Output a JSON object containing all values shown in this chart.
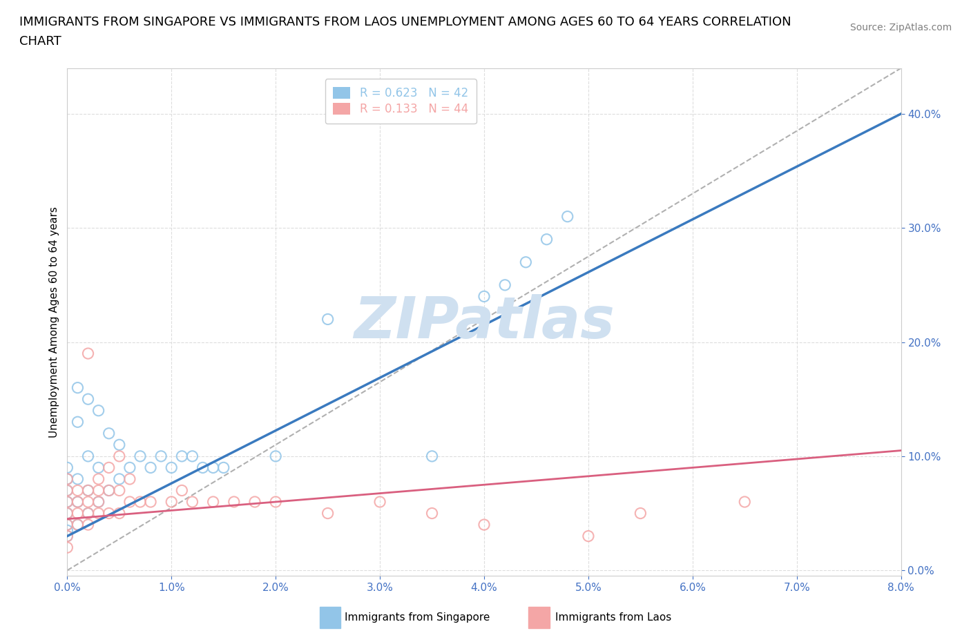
{
  "title_line1": "IMMIGRANTS FROM SINGAPORE VS IMMIGRANTS FROM LAOS UNEMPLOYMENT AMONG AGES 60 TO 64 YEARS CORRELATION",
  "title_line2": "CHART",
  "source": "Source: ZipAtlas.com",
  "ylabel": "Unemployment Among Ages 60 to 64 years",
  "xlim": [
    0.0,
    0.08
  ],
  "ylim": [
    -0.005,
    0.44
  ],
  "xticks": [
    0.0,
    0.01,
    0.02,
    0.03,
    0.04,
    0.05,
    0.06,
    0.07,
    0.08
  ],
  "yticks": [
    0.0,
    0.1,
    0.2,
    0.3,
    0.4
  ],
  "xtick_labels": [
    "0.0%",
    "1.0%",
    "2.0%",
    "3.0%",
    "4.0%",
    "5.0%",
    "6.0%",
    "7.0%",
    "8.0%"
  ],
  "ytick_labels": [
    "0.0%",
    "10.0%",
    "20.0%",
    "30.0%",
    "40.0%"
  ],
  "legend_entries": [
    {
      "label": "Immigrants from Singapore",
      "R": "0.623",
      "N": "42",
      "color": "#92c5e8"
    },
    {
      "label": "Immigrants from Laos",
      "R": "0.133",
      "N": "44",
      "color": "#f4a6a6"
    }
  ],
  "watermark": "ZIPatlas",
  "singapore_scatter_x": [
    0.0,
    0.0,
    0.0,
    0.0,
    0.0,
    0.0,
    0.0,
    0.0,
    0.001,
    0.001,
    0.001,
    0.001,
    0.001,
    0.002,
    0.002,
    0.002,
    0.002,
    0.003,
    0.003,
    0.003,
    0.004,
    0.004,
    0.005,
    0.005,
    0.006,
    0.007,
    0.008,
    0.009,
    0.01,
    0.011,
    0.012,
    0.013,
    0.014,
    0.015,
    0.02,
    0.025,
    0.035,
    0.04,
    0.042,
    0.044,
    0.046,
    0.048
  ],
  "singapore_scatter_y": [
    0.03,
    0.035,
    0.04,
    0.05,
    0.06,
    0.07,
    0.08,
    0.09,
    0.04,
    0.06,
    0.08,
    0.13,
    0.16,
    0.05,
    0.07,
    0.1,
    0.15,
    0.06,
    0.09,
    0.14,
    0.07,
    0.12,
    0.08,
    0.11,
    0.09,
    0.1,
    0.09,
    0.1,
    0.09,
    0.1,
    0.1,
    0.09,
    0.09,
    0.09,
    0.1,
    0.22,
    0.1,
    0.24,
    0.25,
    0.27,
    0.29,
    0.31
  ],
  "laos_scatter_x": [
    0.0,
    0.0,
    0.0,
    0.0,
    0.0,
    0.0,
    0.0,
    0.001,
    0.001,
    0.001,
    0.001,
    0.002,
    0.002,
    0.002,
    0.002,
    0.002,
    0.003,
    0.003,
    0.003,
    0.003,
    0.004,
    0.004,
    0.004,
    0.005,
    0.005,
    0.005,
    0.006,
    0.006,
    0.007,
    0.008,
    0.01,
    0.011,
    0.012,
    0.014,
    0.016,
    0.018,
    0.02,
    0.025,
    0.03,
    0.035,
    0.04,
    0.05,
    0.055,
    0.065
  ],
  "laos_scatter_y": [
    0.02,
    0.03,
    0.04,
    0.05,
    0.06,
    0.07,
    0.08,
    0.04,
    0.05,
    0.06,
    0.07,
    0.04,
    0.05,
    0.06,
    0.07,
    0.19,
    0.05,
    0.06,
    0.07,
    0.08,
    0.05,
    0.07,
    0.09,
    0.05,
    0.07,
    0.1,
    0.06,
    0.08,
    0.06,
    0.06,
    0.06,
    0.07,
    0.06,
    0.06,
    0.06,
    0.06,
    0.06,
    0.05,
    0.06,
    0.05,
    0.04,
    0.03,
    0.05,
    0.06
  ],
  "singapore_line_x": [
    0.0,
    0.08
  ],
  "singapore_line_y": [
    0.03,
    0.4
  ],
  "laos_line_x": [
    0.0,
    0.08
  ],
  "laos_line_y": [
    0.045,
    0.105
  ],
  "dash_line_x": [
    0.0,
    0.08
  ],
  "dash_line_y": [
    0.0,
    0.44
  ],
  "singapore_color": "#92c5e8",
  "laos_color": "#f4a6a6",
  "singapore_line_color": "#3a7abf",
  "laos_line_color": "#d95f7f",
  "dash_line_color": "#b0b0b0",
  "background_color": "#ffffff",
  "grid_color": "#dddddd",
  "axis_color": "#cccccc",
  "tick_color_blue": "#4472c4",
  "watermark_color": "#cfe0f0",
  "title_fontsize": 13,
  "axis_label_fontsize": 11,
  "tick_fontsize": 11,
  "legend_fontsize": 12,
  "source_fontsize": 10
}
